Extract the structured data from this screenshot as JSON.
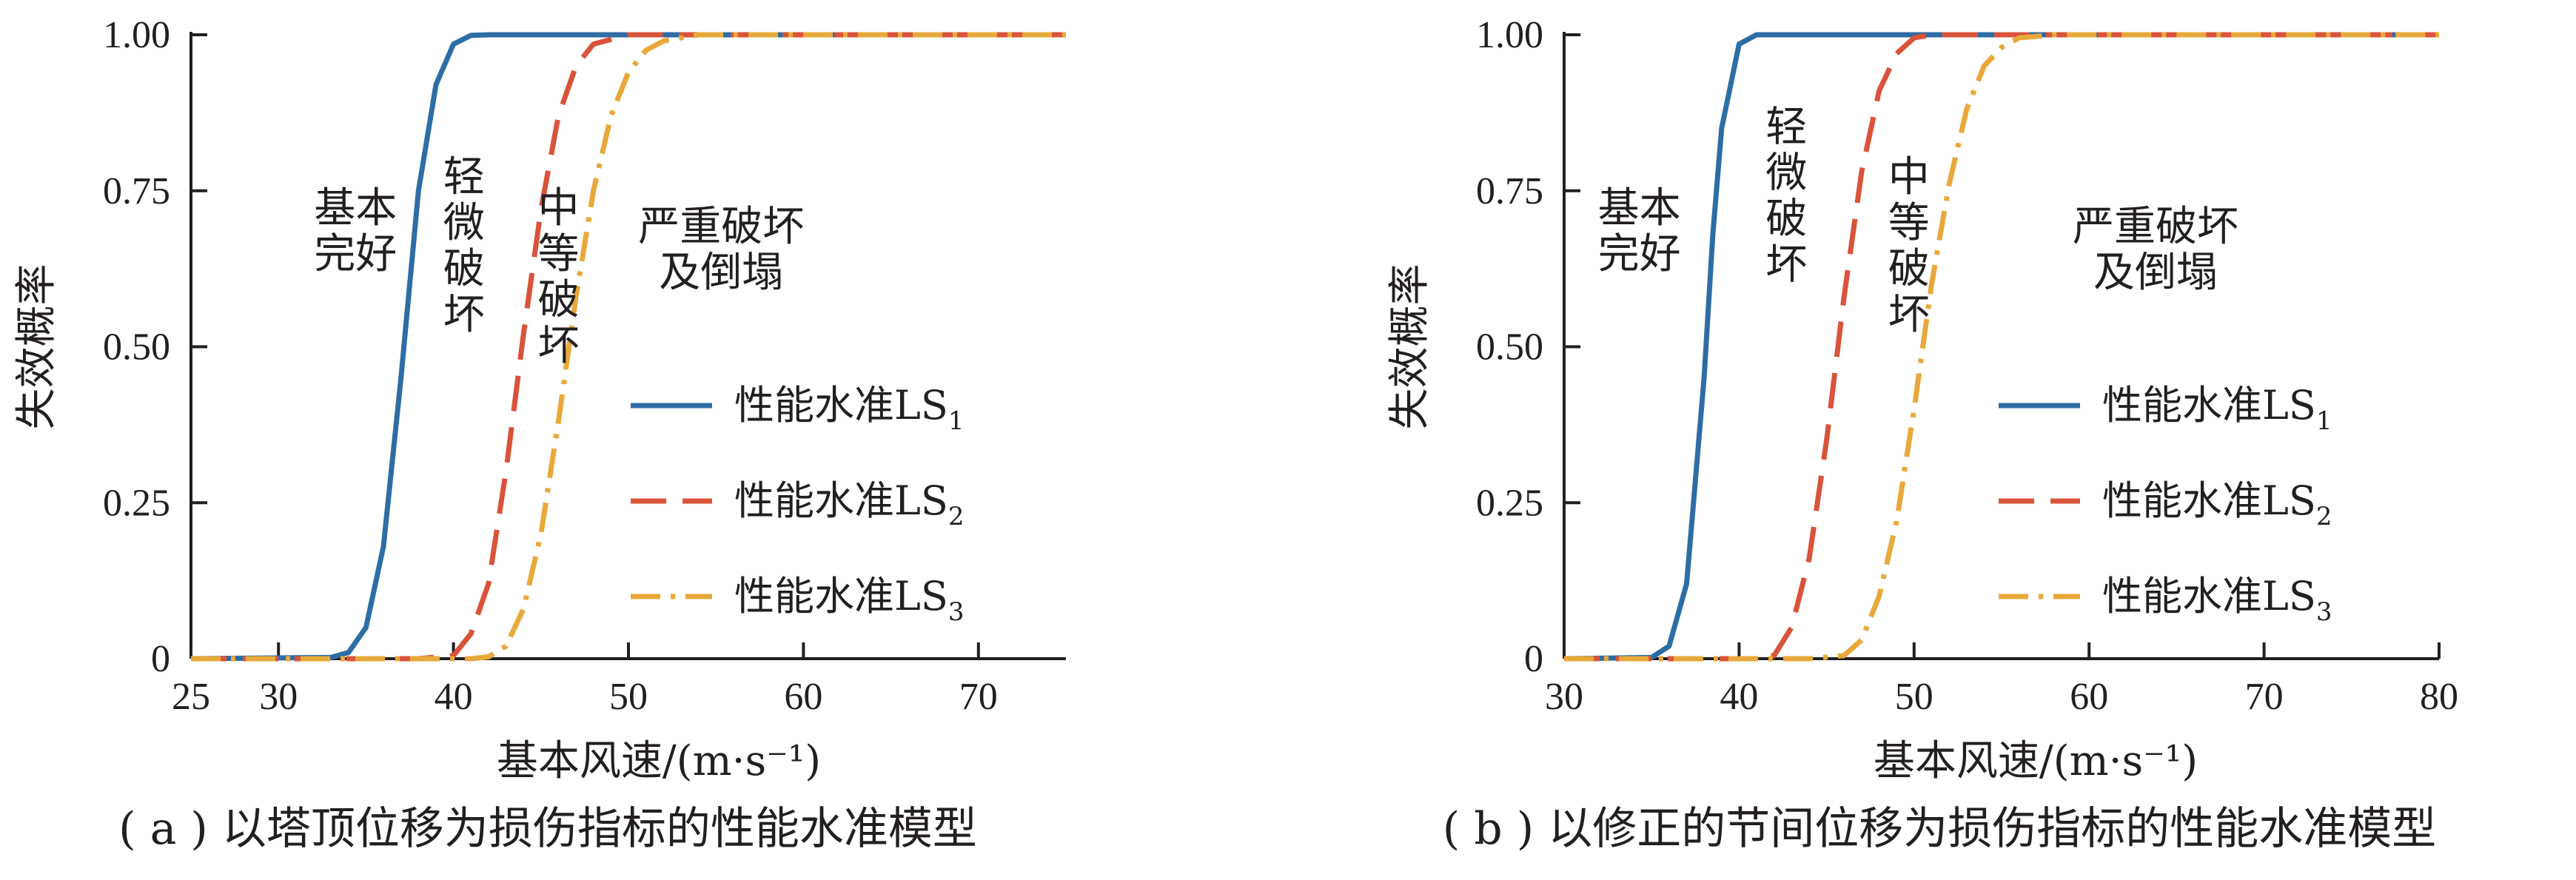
{
  "chart_data": [
    {
      "type": "line",
      "xlabel": "基本风速/(m·s⁻¹)",
      "ylabel": "失效概率",
      "xlim": [
        25,
        75
      ],
      "ylim": [
        0,
        1
      ],
      "xticks": [
        "25",
        "30",
        "40",
        "50",
        "60",
        "70"
      ],
      "xtick_values": [
        25,
        30,
        40,
        50,
        60,
        70
      ],
      "yticks": [
        "0",
        "0.25",
        "0.50",
        "0.75",
        "1.00"
      ],
      "ytick_values": [
        0,
        0.25,
        0.5,
        0.75,
        1.0
      ],
      "caption": "( a ) 以塔顶位移为损伤指标的性能水准模型",
      "annotations": [
        {
          "text": [
            "基本",
            "完好"
          ],
          "x": 34.4,
          "y": 0.7
        },
        {
          "text": [
            "轻",
            "微",
            "破",
            "坏"
          ],
          "x": 40.6,
          "y": 0.75
        },
        {
          "text": [
            "中",
            "等",
            "破",
            "坏"
          ],
          "x": 46.0,
          "y": 0.7
        },
        {
          "text": [
            "严重破坏",
            "及倒塌"
          ],
          "x": 55.3,
          "y": 0.67
        }
      ],
      "series": [
        {
          "name": "性能水准LS",
          "sub": "1",
          "color": "#2e6da4",
          "dash": "solid",
          "x": [
            25,
            33,
            34,
            35,
            36,
            37,
            38,
            39,
            40,
            41,
            42,
            75
          ],
          "y": [
            0,
            0.002,
            0.01,
            0.05,
            0.18,
            0.45,
            0.75,
            0.92,
            0.985,
            0.999,
            1.0,
            1.0
          ]
        },
        {
          "name": "性能水准LS",
          "sub": "2",
          "color": "#d9533a",
          "dash": "long",
          "x": [
            25,
            38,
            40,
            41,
            42,
            43,
            44,
            45,
            46,
            47,
            48,
            50,
            75
          ],
          "y": [
            0,
            0.0,
            0.005,
            0.04,
            0.12,
            0.3,
            0.52,
            0.72,
            0.87,
            0.95,
            0.985,
            1.0,
            1.0
          ]
        },
        {
          "name": "性能水准LS",
          "sub": "3",
          "color": "#e8a93a",
          "dash": "dashdot",
          "x": [
            25,
            41,
            42,
            43,
            44,
            45,
            46,
            47,
            48,
            49,
            50,
            51,
            52,
            54,
            75
          ],
          "y": [
            0,
            0.0,
            0.003,
            0.02,
            0.08,
            0.2,
            0.38,
            0.58,
            0.75,
            0.87,
            0.94,
            0.975,
            0.99,
            1.0,
            1.0
          ]
        }
      ]
    },
    {
      "type": "line",
      "xlabel": "基本风速/(m·s⁻¹)",
      "ylabel": "失效概率",
      "xlim": [
        30,
        80
      ],
      "ylim": [
        0,
        1
      ],
      "xticks": [
        "30",
        "40",
        "50",
        "60",
        "70",
        "80"
      ],
      "xtick_values": [
        30,
        40,
        50,
        60,
        70,
        80
      ],
      "yticks": [
        "0",
        "0.25",
        "0.50",
        "0.75",
        "1.00"
      ],
      "ytick_values": [
        0,
        0.25,
        0.5,
        0.75,
        1.0
      ],
      "caption": "( b ) 以修正的节间位移为损伤指标的性能水准模型",
      "annotations": [
        {
          "text": [
            "基本",
            "完好"
          ],
          "x": 34.3,
          "y": 0.7
        },
        {
          "text": [
            "轻",
            "微",
            "破",
            "坏"
          ],
          "x": 42.7,
          "y": 0.83
        },
        {
          "text": [
            "中",
            "等",
            "破",
            "坏"
          ],
          "x": 49.7,
          "y": 0.75
        },
        {
          "text": [
            "严重破坏",
            "及倒塌"
          ],
          "x": 63.8,
          "y": 0.67
        }
      ],
      "series": [
        {
          "name": "性能水准LS",
          "sub": "1",
          "color": "#2e6da4",
          "dash": "solid",
          "x": [
            30,
            35,
            36,
            37,
            38,
            38.5,
            39,
            40,
            41,
            80
          ],
          "y": [
            0,
            0.002,
            0.02,
            0.12,
            0.45,
            0.68,
            0.85,
            0.985,
            1.0,
            1.0
          ]
        },
        {
          "name": "性能水准LS",
          "sub": "2",
          "color": "#d9533a",
          "dash": "long",
          "x": [
            30,
            41,
            42,
            43,
            44,
            45,
            46,
            47,
            48,
            49,
            50,
            51,
            80
          ],
          "y": [
            0,
            0.0,
            0.005,
            0.05,
            0.16,
            0.35,
            0.58,
            0.78,
            0.91,
            0.97,
            0.995,
            1.0,
            1.0
          ]
        },
        {
          "name": "性能水准LS",
          "sub": "3",
          "color": "#e8a93a",
          "dash": "dashdot",
          "x": [
            30,
            44,
            46,
            47,
            48,
            49,
            50,
            51,
            52,
            53,
            54,
            55,
            56,
            58,
            80
          ],
          "y": [
            0,
            0.0,
            0.005,
            0.03,
            0.1,
            0.22,
            0.4,
            0.6,
            0.76,
            0.88,
            0.95,
            0.98,
            0.995,
            1.0,
            1.0
          ]
        }
      ]
    }
  ]
}
